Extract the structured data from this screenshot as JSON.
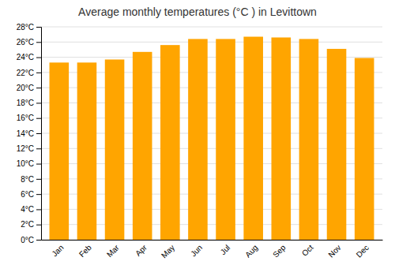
{
  "chart_data": {
    "type": "bar",
    "title": "Average monthly temperatures (°C ) in Levittown",
    "categories": [
      "Jan",
      "Feb",
      "Mar",
      "Apr",
      "May",
      "Jun",
      "Jul",
      "Aug",
      "Sep",
      "Oct",
      "Nov",
      "Dec"
    ],
    "values": [
      23.3,
      23.3,
      23.7,
      24.7,
      25.6,
      26.4,
      26.4,
      26.7,
      26.6,
      26.4,
      25.1,
      23.9
    ],
    "color": "#FFA500",
    "ylim": [
      0,
      28
    ],
    "yticks": [
      {
        "value": 0,
        "label": "0°C"
      },
      {
        "value": 2,
        "label": "2°C"
      },
      {
        "value": 4,
        "label": "4°C"
      },
      {
        "value": 6,
        "label": "6°C"
      },
      {
        "value": 8,
        "label": "8°C"
      },
      {
        "value": 10,
        "label": "10°C"
      },
      {
        "value": 12,
        "label": "12°C"
      },
      {
        "value": 14,
        "label": "14°C"
      },
      {
        "value": 16,
        "label": "16°C"
      },
      {
        "value": 18,
        "label": "18°C"
      },
      {
        "value": 20,
        "label": "20°C"
      },
      {
        "value": 22,
        "label": "22°C"
      },
      {
        "value": 24,
        "label": "24°C"
      },
      {
        "value": 26,
        "label": "26°C"
      },
      {
        "value": 28,
        "label": "28°C"
      }
    ],
    "grid": true
  }
}
